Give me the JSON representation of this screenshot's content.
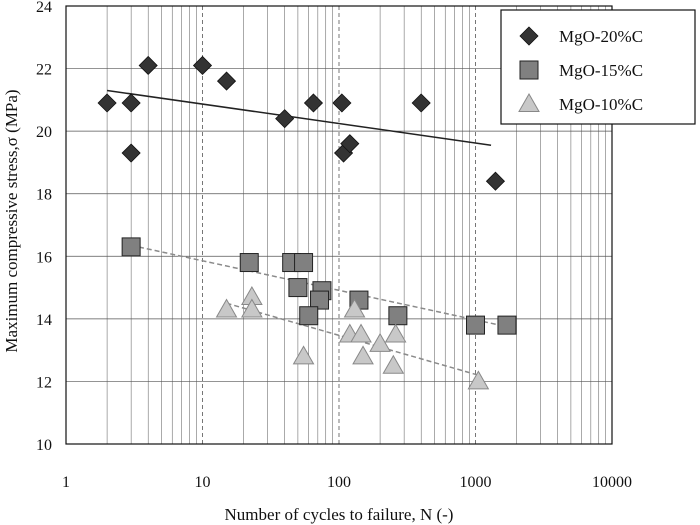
{
  "chart_data": {
    "type": "scatter",
    "title": "",
    "xlabel": "Number of cycles to failure, N (-)",
    "ylabel": "Maximum compressive stress,σ (MPa)",
    "x_scale": "log",
    "xlim": [
      1,
      10000
    ],
    "ylim": [
      10,
      24
    ],
    "x_ticks": [
      1,
      10,
      100,
      1000,
      10000
    ],
    "x_tick_labels": [
      "1",
      "10",
      "100",
      "1000",
      "10000"
    ],
    "y_ticks": [
      10,
      12,
      14,
      16,
      18,
      20,
      22,
      24
    ],
    "y_tick_labels": [
      "10",
      "12",
      "14",
      "16",
      "18",
      "20",
      "22",
      "24"
    ],
    "grid": true,
    "legend_position": "top-right",
    "series": [
      {
        "name": "MgO-20%C",
        "marker": "diamond",
        "color": "#333333",
        "points": [
          [
            2,
            20.9
          ],
          [
            3,
            20.9
          ],
          [
            3,
            19.3
          ],
          [
            4,
            22.1
          ],
          [
            10,
            22.1
          ],
          [
            15,
            21.6
          ],
          [
            40,
            20.4
          ],
          [
            65,
            20.9
          ],
          [
            105,
            20.9
          ],
          [
            108,
            19.3
          ],
          [
            120,
            19.6
          ],
          [
            400,
            20.9
          ],
          [
            1400,
            18.4
          ]
        ],
        "trend": [
          [
            2,
            21.3
          ],
          [
            1300,
            19.55
          ]
        ],
        "trend_style": "solid"
      },
      {
        "name": "MgO-15%C",
        "marker": "square",
        "color": "#808080",
        "points": [
          [
            3,
            16.3
          ],
          [
            22,
            15.8
          ],
          [
            45,
            15.8
          ],
          [
            55,
            15.8
          ],
          [
            50,
            15.0
          ],
          [
            75,
            14.9
          ],
          [
            72,
            14.6
          ],
          [
            60,
            14.1
          ],
          [
            140,
            14.6
          ],
          [
            270,
            14.1
          ],
          [
            1000,
            13.8
          ],
          [
            1700,
            13.8
          ]
        ],
        "trend": [
          [
            3,
            16.35
          ],
          [
            1700,
            13.75
          ]
        ],
        "trend_style": "dashed"
      },
      {
        "name": "MgO-10%C",
        "marker": "triangle",
        "color": "#c8c8c8",
        "points": [
          [
            15,
            14.3
          ],
          [
            23,
            14.7
          ],
          [
            23,
            14.3
          ],
          [
            55,
            12.8
          ],
          [
            120,
            13.5
          ],
          [
            130,
            14.3
          ],
          [
            145,
            13.5
          ],
          [
            150,
            12.8
          ],
          [
            200,
            13.2
          ],
          [
            250,
            12.5
          ],
          [
            260,
            13.5
          ],
          [
            1050,
            12.0
          ]
        ],
        "trend": [
          [
            15,
            14.5
          ],
          [
            1050,
            12.2
          ]
        ],
        "trend_style": "dashed"
      }
    ]
  },
  "colors": {
    "grid": "#555555",
    "axis": "#111111",
    "trend_solid": "#222222",
    "trend_dashed": "#8a8a8a"
  }
}
